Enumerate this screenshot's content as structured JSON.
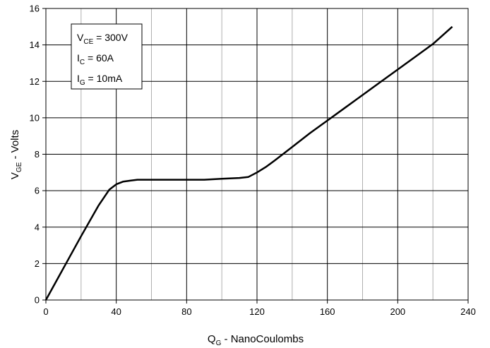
{
  "chart_data": {
    "type": "line",
    "title": "",
    "xlabel": {
      "main": "Q",
      "sub": "G",
      "rest": " - NanoCoulombs"
    },
    "ylabel": {
      "main": "V",
      "sub": "GE",
      "rest": " - Volts"
    },
    "xlim": [
      0,
      240
    ],
    "ylim": [
      0,
      16
    ],
    "x_ticks": [
      0,
      40,
      80,
      120,
      160,
      200,
      240
    ],
    "y_ticks": [
      0,
      2,
      4,
      6,
      8,
      10,
      12,
      14,
      16
    ],
    "x_minor_step": 20,
    "grid": true,
    "annotations": [
      {
        "main": "V",
        "sub": "CE",
        "rest": " = 300V"
      },
      {
        "main": "I",
        "sub": "C",
        "rest": " = 60A"
      },
      {
        "main": "I",
        "sub": "G",
        "rest": " = 10mA"
      }
    ],
    "series": [
      {
        "x": [
          0,
          10,
          20,
          30,
          36,
          40,
          44,
          48,
          52,
          60,
          70,
          80,
          90,
          100,
          110,
          115,
          120,
          125,
          130,
          140,
          150,
          160,
          170,
          180,
          190,
          200,
          210,
          220,
          231
        ],
        "y": [
          0,
          1.75,
          3.5,
          5.2,
          6.05,
          6.35,
          6.5,
          6.55,
          6.6,
          6.6,
          6.6,
          6.6,
          6.6,
          6.65,
          6.7,
          6.75,
          7.0,
          7.3,
          7.65,
          8.4,
          9.15,
          9.85,
          10.55,
          11.25,
          11.95,
          12.65,
          13.35,
          14.05,
          15.0
        ]
      }
    ]
  },
  "colors": {
    "line": "#000000",
    "grid": "#000000",
    "minor_grid": "#b0b0b0"
  }
}
